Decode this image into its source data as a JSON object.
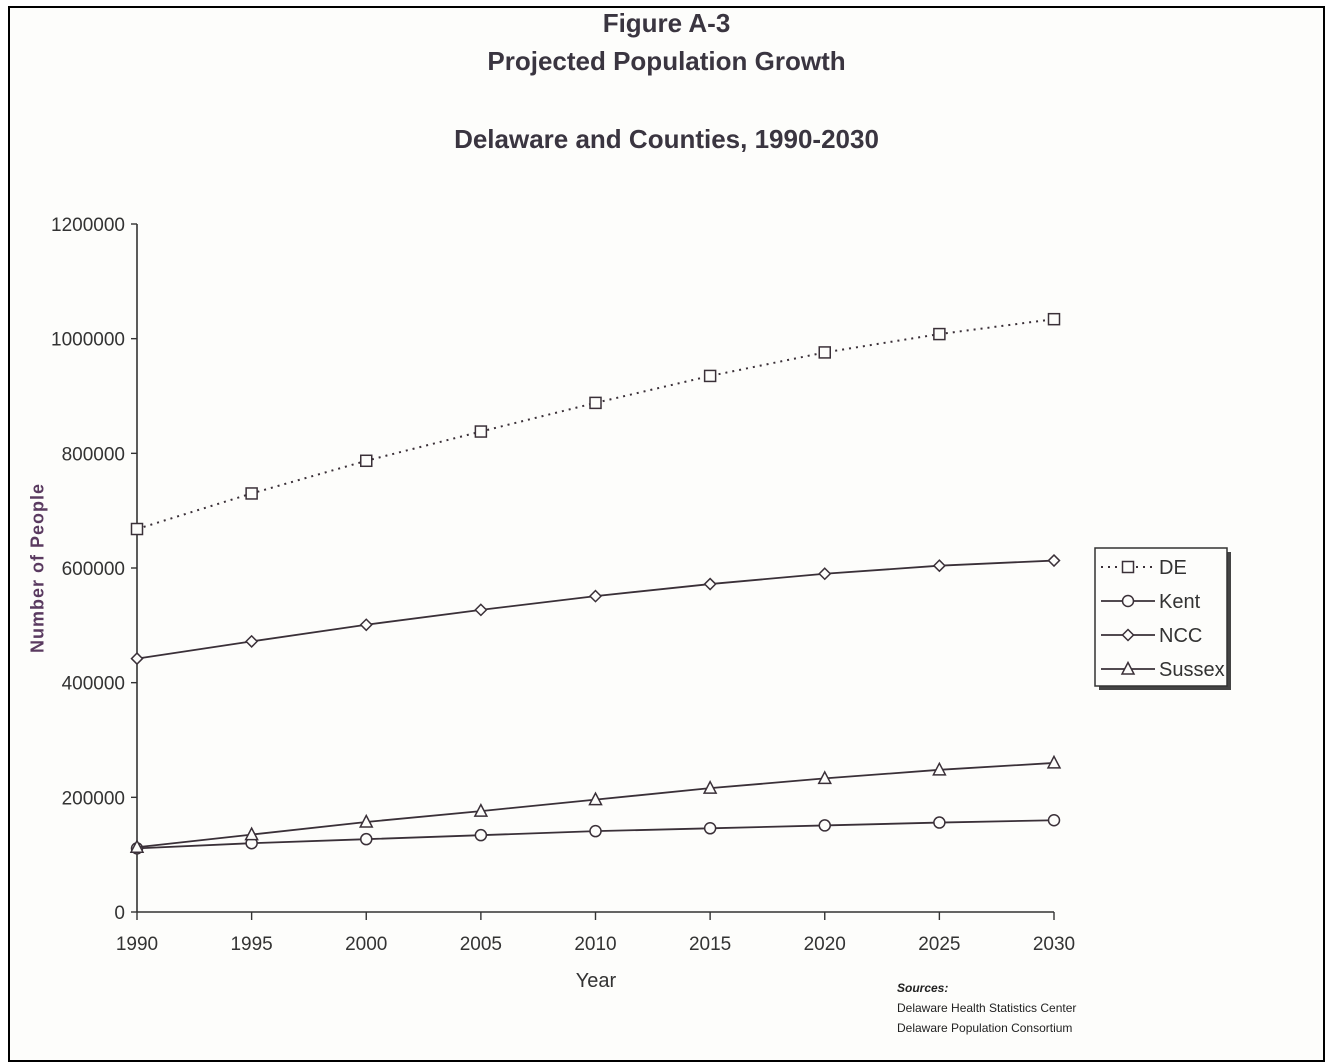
{
  "figure_label": "Figure A-3",
  "chart_data": {
    "type": "line",
    "title": "Projected Population Growth",
    "subtitle": "Delaware and Counties, 1990-2030",
    "xlabel": "Year",
    "ylabel": "Number of People",
    "x": [
      1990,
      1995,
      2000,
      2005,
      2010,
      2015,
      2020,
      2025,
      2030
    ],
    "xticks": [
      "1990",
      "1995",
      "2000",
      "2005",
      "2010",
      "2015",
      "2020",
      "2025",
      "2030"
    ],
    "ylim": [
      0,
      1200000
    ],
    "yticks": [
      "0",
      "200000",
      "400000",
      "600000",
      "800000",
      "1000000",
      "1200000"
    ],
    "grid": false,
    "legend_position": "right",
    "series": [
      {
        "name": "DE",
        "marker": "square",
        "line": "dotted",
        "values": [
          668000,
          730000,
          787000,
          838000,
          888000,
          935000,
          976000,
          1008000,
          1034000
        ]
      },
      {
        "name": "Kent",
        "marker": "circle",
        "line": "solid",
        "values": [
          111000,
          120000,
          127000,
          134000,
          141000,
          146000,
          151000,
          156000,
          160000
        ]
      },
      {
        "name": "NCC",
        "marker": "diamond",
        "line": "solid",
        "values": [
          442000,
          472000,
          501000,
          527000,
          551000,
          572000,
          590000,
          604000,
          613000
        ]
      },
      {
        "name": "Sussex",
        "marker": "triangle",
        "line": "solid",
        "values": [
          113000,
          135000,
          157000,
          176000,
          196000,
          216000,
          233000,
          248000,
          260000
        ]
      }
    ]
  },
  "sources": {
    "heading": "Sources:",
    "lines": [
      "Delaware Health Statistics Center",
      "Delaware Population Consortium"
    ]
  },
  "colors": {
    "line": "#3a3038",
    "axis": "#333333",
    "text": "#333333"
  }
}
